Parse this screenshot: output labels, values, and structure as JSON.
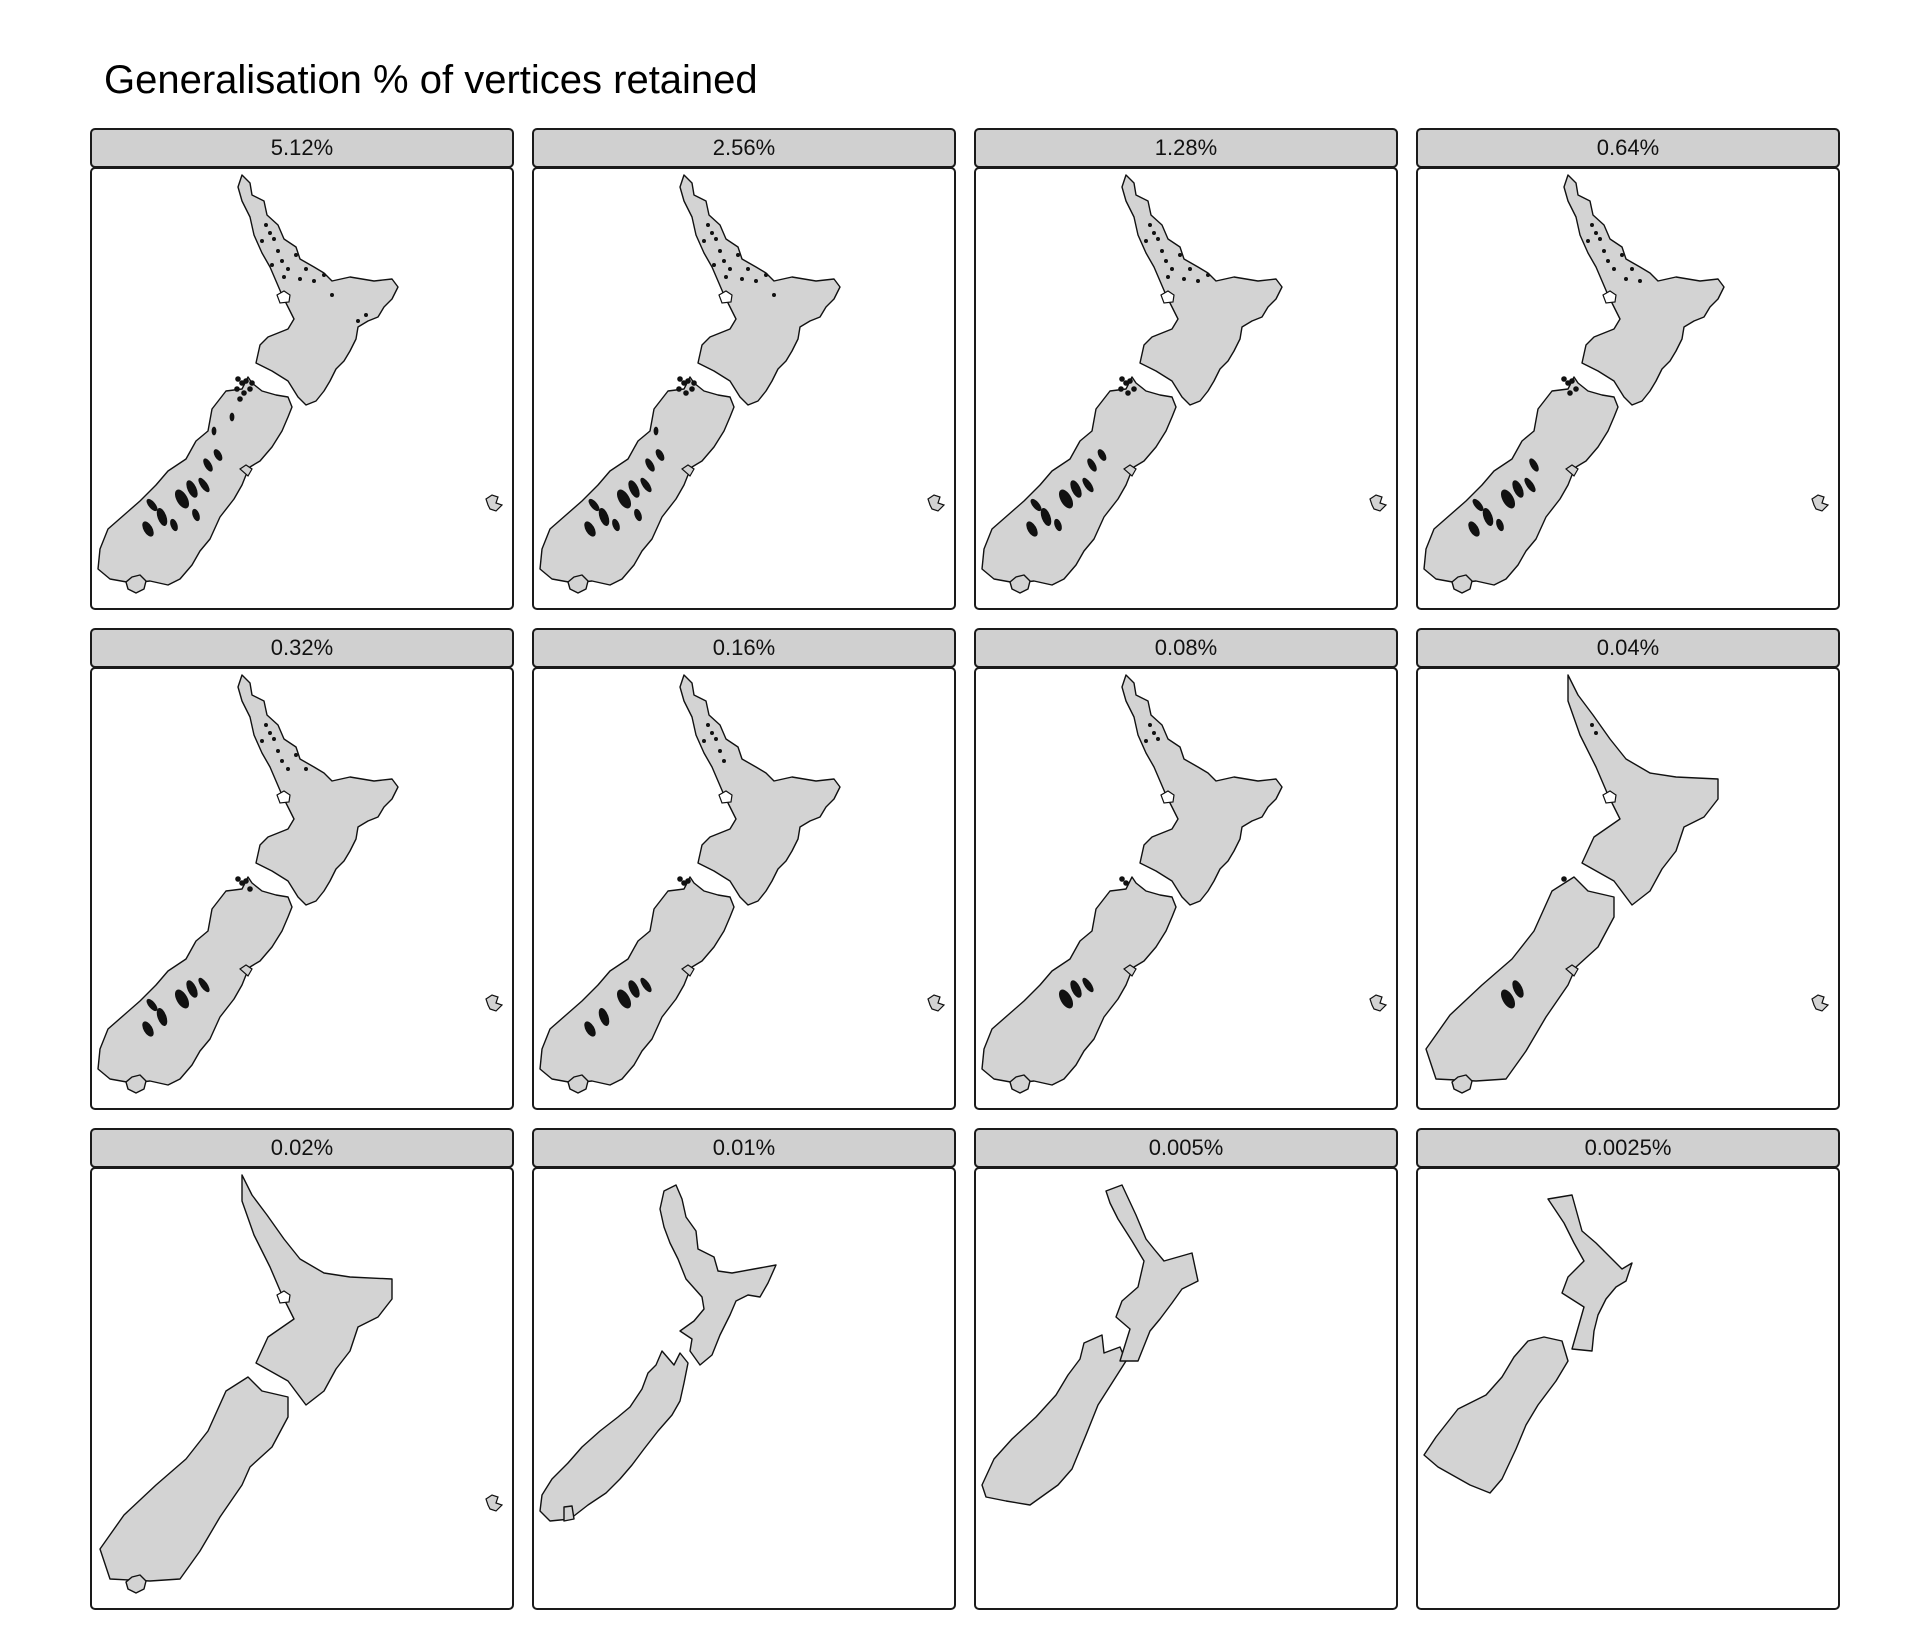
{
  "title": "Generalisation % of vertices retained",
  "colors": {
    "land": "#d3d3d3",
    "strip": "#d0d0d0",
    "outline": "#111111",
    "background": "#ffffff"
  },
  "facets": [
    {
      "label": "5.12%"
    },
    {
      "label": "2.56%"
    },
    {
      "label": "1.28%"
    },
    {
      "label": "0.64%"
    },
    {
      "label": "0.32%"
    },
    {
      "label": "0.16%"
    },
    {
      "label": "0.08%"
    },
    {
      "label": "0.04%"
    },
    {
      "label": "0.02%"
    },
    {
      "label": "0.01%"
    },
    {
      "label": "0.005%"
    },
    {
      "label": "0.0025%"
    }
  ]
}
